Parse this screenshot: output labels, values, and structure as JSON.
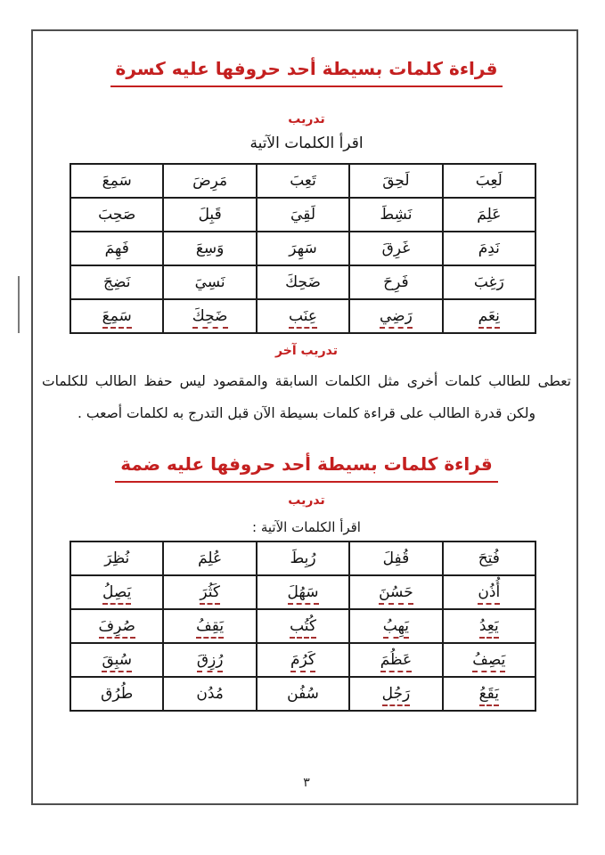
{
  "page_number": "٣",
  "colors": {
    "accent_red": "#c41f1f",
    "mark_red": "#a53030"
  },
  "kasra_section": {
    "title": "قراءة كلمات بسيطة أحد حروفها عليه كسرة",
    "exercise_label": "تدريب",
    "instruction": "اقرأ الكلمات الآتية",
    "table": {
      "rows": [
        [
          {
            "t": "لَعِبَ"
          },
          {
            "t": "لَحِقَ"
          },
          {
            "t": "تَعِبَ"
          },
          {
            "t": "مَرِضَ"
          },
          {
            "t": "سَمِعَ"
          }
        ],
        [
          {
            "t": "عَلِمَ"
          },
          {
            "t": "نَشِطَ"
          },
          {
            "t": "لَقِيَ"
          },
          {
            "t": "قَبِلَ"
          },
          {
            "t": "صَحِبَ"
          }
        ],
        [
          {
            "t": "نَدِمَ"
          },
          {
            "t": "غَرِقَ"
          },
          {
            "t": "سَهِرَ"
          },
          {
            "t": "وَسِعَ"
          },
          {
            "t": "فَهِمَ"
          }
        ],
        [
          {
            "t": "رَغِبَ"
          },
          {
            "t": "فَرِحَ"
          },
          {
            "t": "ضَحِكَ"
          },
          {
            "t": "نَسِيَ"
          },
          {
            "t": "نَضِجَ"
          }
        ],
        [
          {
            "t": "نِعَم",
            "m": true
          },
          {
            "t": "رَضِي",
            "m": true
          },
          {
            "t": "عِنَب",
            "m": true
          },
          {
            "t": "ضَحِكَ",
            "m": true
          },
          {
            "t": "سَمِعَ",
            "m": true
          }
        ]
      ]
    }
  },
  "another_exercise": {
    "label": "تدريب آخر",
    "note": "تعطى للطالب كلمات أخرى مثل الكلمات السابقة والمقصود ليس حفظ الطالب للكلمات ولكن قدرة الطالب على قراءة كلمات بسيطة الآن قبل التدرج به لكلمات أصعب ."
  },
  "damma_section": {
    "title": "قراءة كلمات بسيطة أحد حروفها عليه ضمة",
    "exercise_label": "تدريب",
    "instruction": "اقرأ الكلمات الآتية :",
    "table": {
      "rows": [
        [
          {
            "t": "فُتِحَ"
          },
          {
            "t": "قُفِلَ"
          },
          {
            "t": "رُبِطَ"
          },
          {
            "t": "عُلِمَ"
          },
          {
            "t": "نُظِرَ"
          }
        ],
        [
          {
            "t": "أُذُن",
            "m": true
          },
          {
            "t": "حَسُنَ",
            "m": true
          },
          {
            "t": "سَهُلَ",
            "m": true
          },
          {
            "t": "كَثُرَ",
            "m": true
          },
          {
            "t": "يَصِلُ",
            "m": true
          }
        ],
        [
          {
            "t": "يَعِدُ",
            "m": true
          },
          {
            "t": "يَهِبُ",
            "m": true
          },
          {
            "t": "كُتُب",
            "m": true
          },
          {
            "t": "يَقِفُ",
            "m": true
          },
          {
            "t": "صُرِفَ",
            "m": true
          }
        ],
        [
          {
            "t": "يَصِفُ",
            "m": true
          },
          {
            "t": "عَظُمَ",
            "m": true
          },
          {
            "t": "كَرُمَ",
            "m": true
          },
          {
            "t": "رُزِقَ",
            "m": true
          },
          {
            "t": "سُبِقَ",
            "m": true
          }
        ],
        [
          {
            "t": "يَقَعُ",
            "m": true
          },
          {
            "t": "رَجُل",
            "m": true
          },
          {
            "t": "سُفُن"
          },
          {
            "t": "مُدُن"
          },
          {
            "t": "طُرُق"
          }
        ]
      ]
    }
  }
}
